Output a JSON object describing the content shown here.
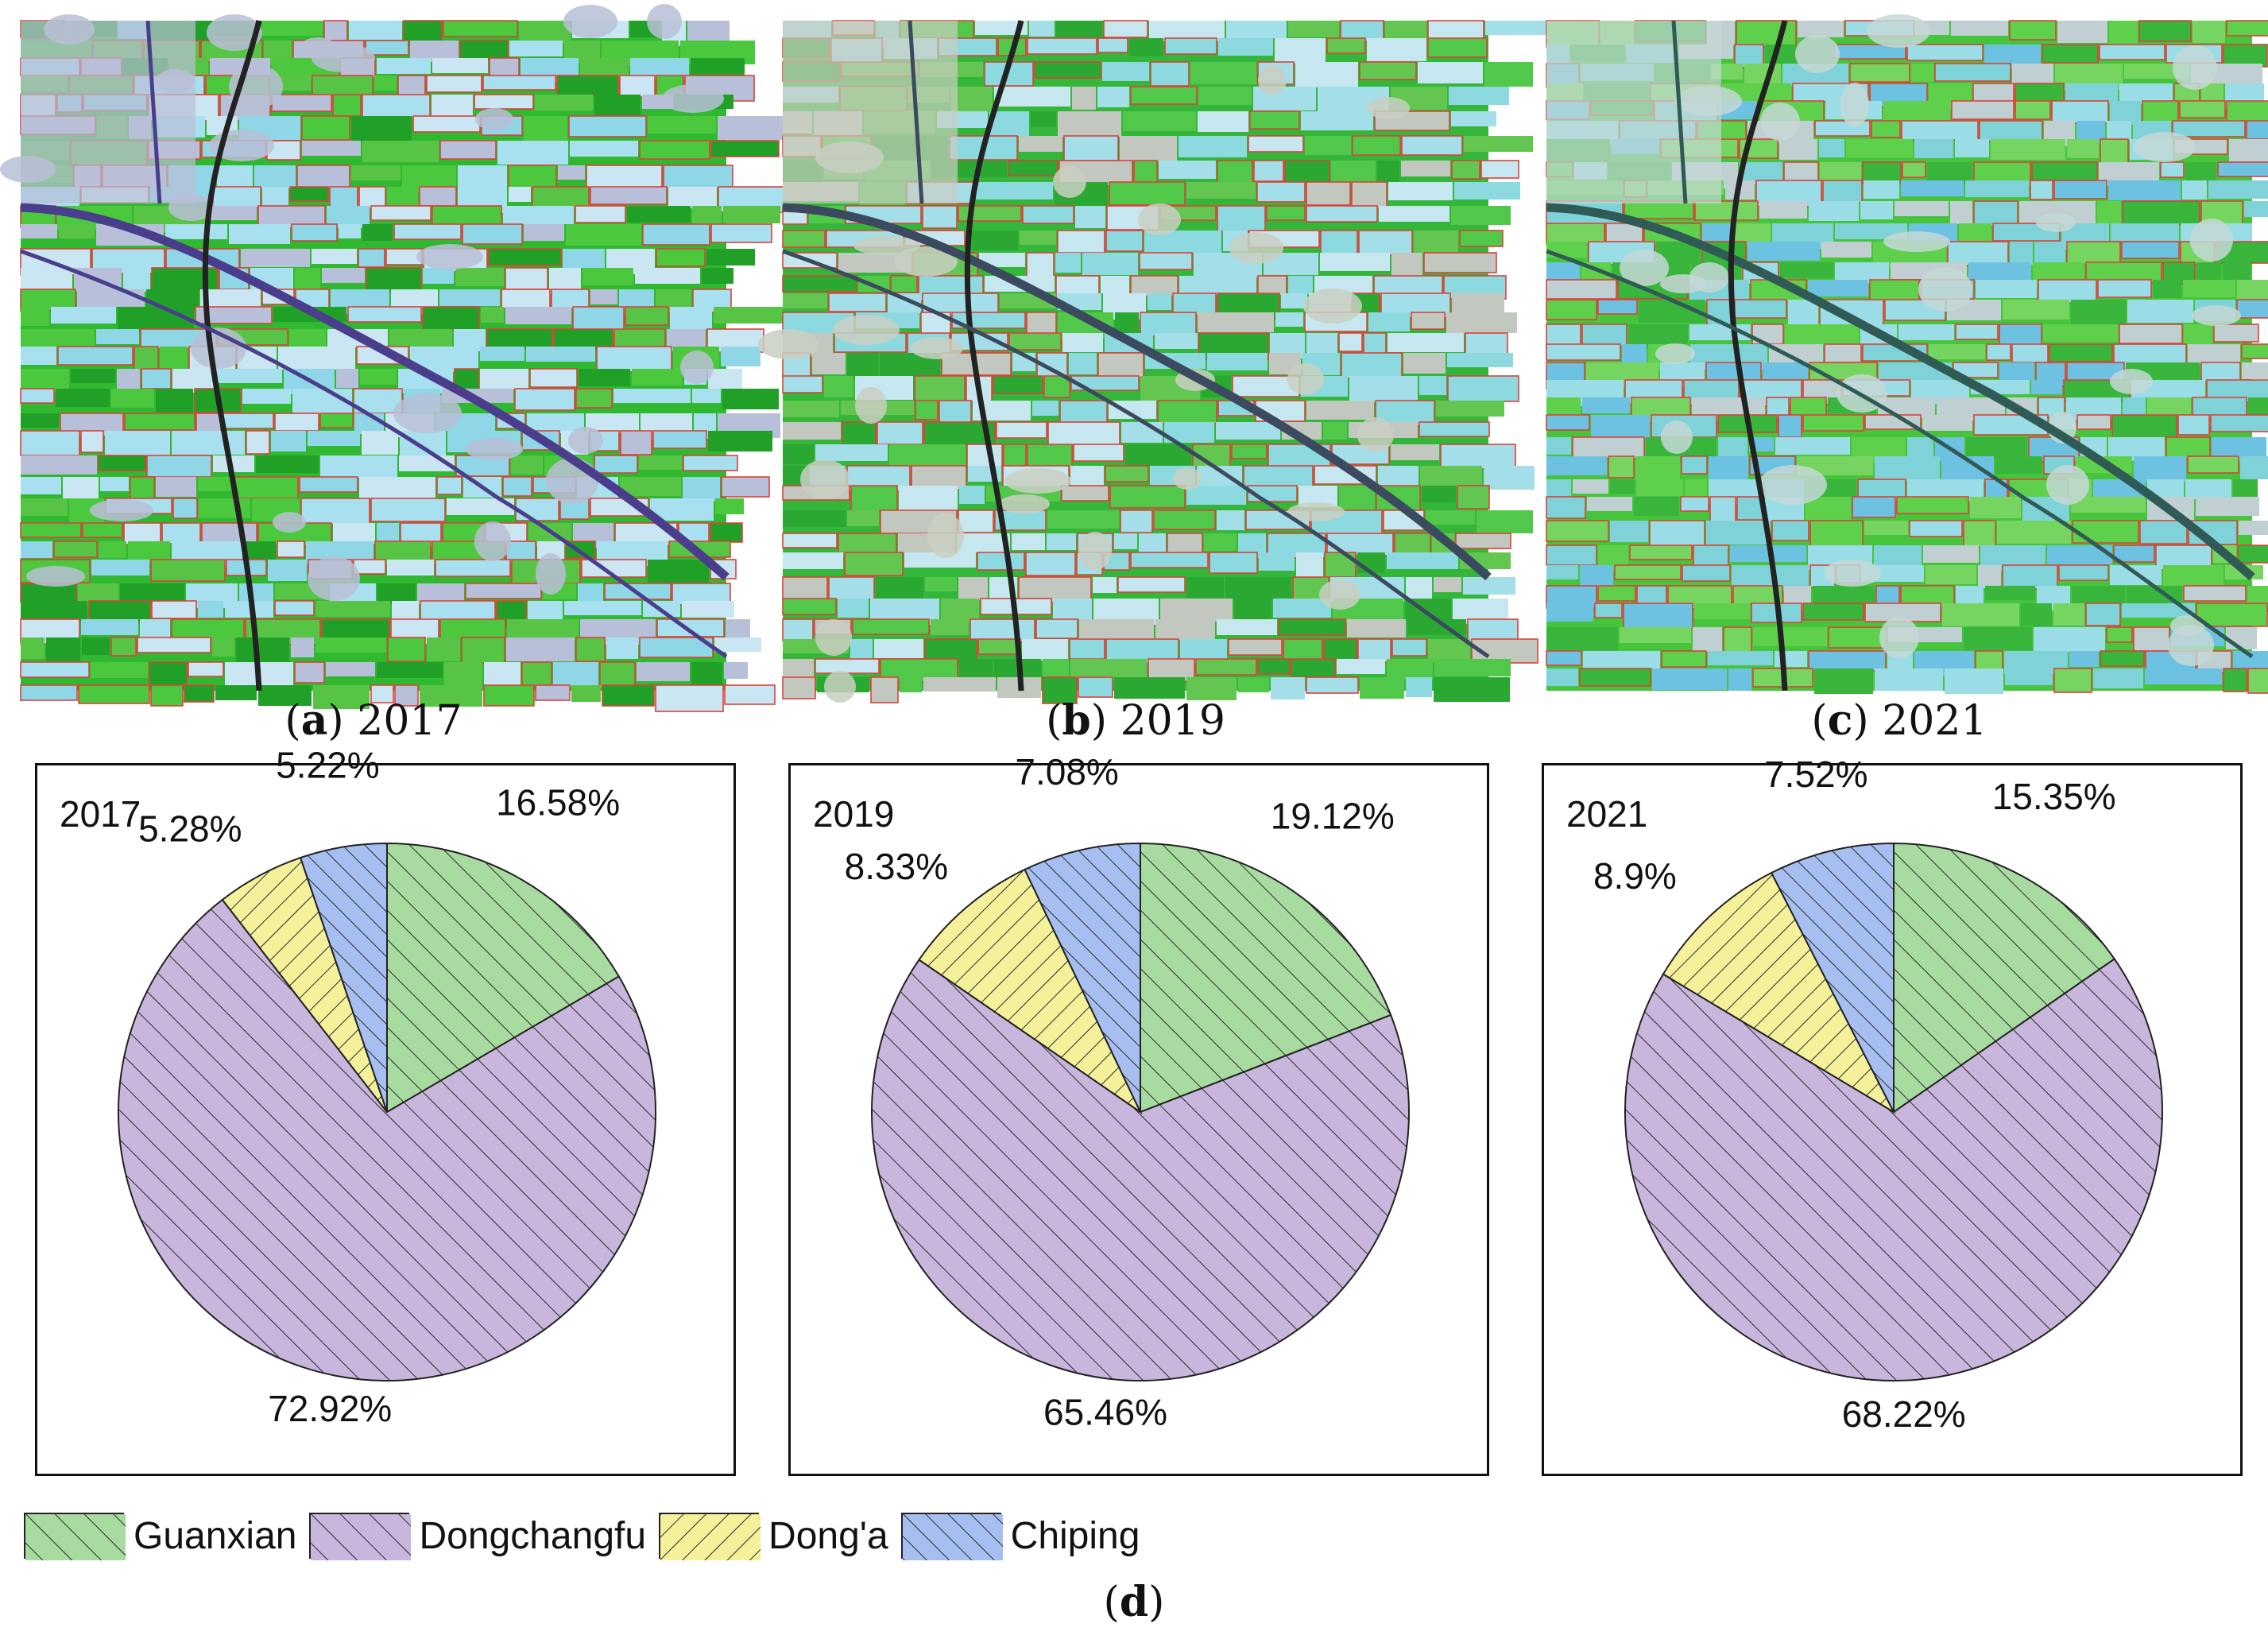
{
  "figure": {
    "panels": [
      {
        "letter": "a",
        "year": "2017"
      },
      {
        "letter": "b",
        "year": "2019"
      },
      {
        "letter": "c",
        "year": "2021"
      }
    ],
    "summary_caption": {
      "letter": "d"
    }
  },
  "colors": {
    "Guanxian": "#a8dba0",
    "Dongchangfu": "#c8b6dc",
    "Dong'a": "#f4f19a",
    "Chiping": "#a7bff0",
    "satellite_green": "#2fb92f",
    "parcel_outline": "#d9433a"
  },
  "legend": [
    "Guanxian",
    "Dongchangfu",
    "Dong'a",
    "Chiping"
  ],
  "chart_data": [
    {
      "type": "pie",
      "title": "2017",
      "categories": [
        "Guanxian",
        "Dongchangfu",
        "Dong'a",
        "Chiping"
      ],
      "values": [
        16.58,
        72.92,
        5.28,
        5.22
      ],
      "labels": [
        "16.58%",
        "72.92%",
        "5.28%",
        "5.22%"
      ]
    },
    {
      "type": "pie",
      "title": "2019",
      "categories": [
        "Guanxian",
        "Dongchangfu",
        "Dong'a",
        "Chiping"
      ],
      "values": [
        19.12,
        65.46,
        8.33,
        7.08
      ],
      "labels": [
        "19.12%",
        "65.46%",
        "8.33%",
        "7.08%"
      ]
    },
    {
      "type": "pie",
      "title": "2021",
      "categories": [
        "Guanxian",
        "Dongchangfu",
        "Dong'a",
        "Chiping"
      ],
      "values": [
        15.35,
        68.22,
        8.9,
        7.52
      ],
      "labels": [
        "15.35%",
        "68.22%",
        "8.9%",
        "7.52%"
      ]
    }
  ]
}
